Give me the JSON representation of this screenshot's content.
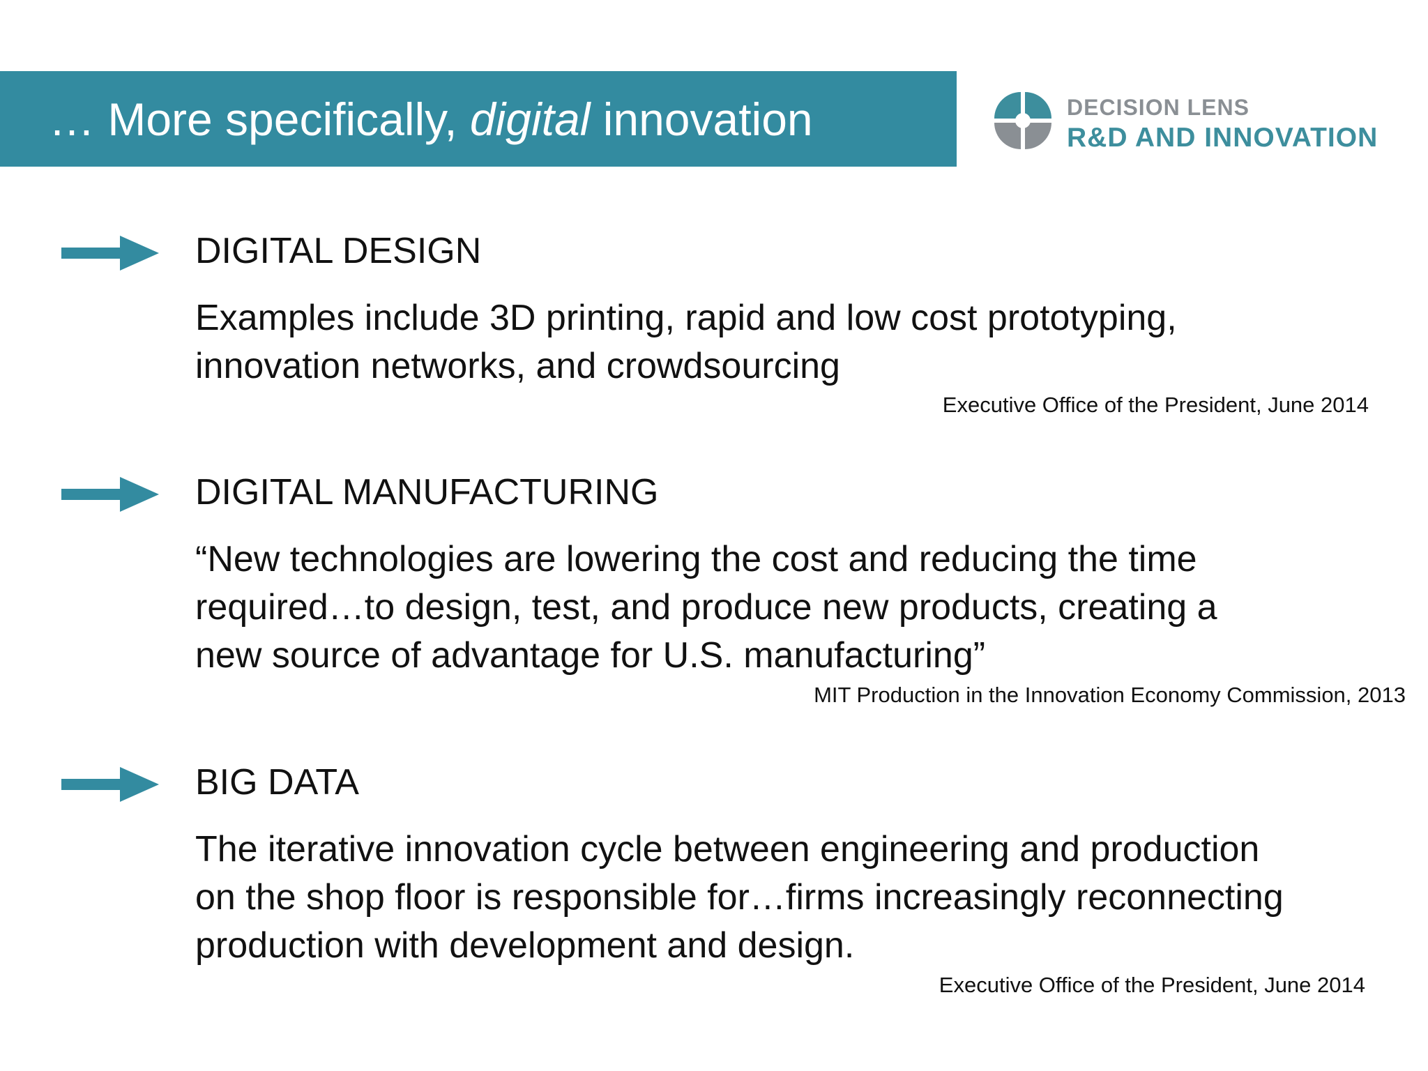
{
  "header": {
    "title_prefix": "… More specifically, ",
    "title_emphasis": "digital",
    "title_suffix": " innovation"
  },
  "logo": {
    "line1": "DECISION LENS",
    "line2": "R&D AND INNOVATION",
    "colors": {
      "teal": "#3d8e9d",
      "gray": "#8a8f94"
    }
  },
  "sections": [
    {
      "heading": "DIGITAL DESIGN",
      "body": "Examples include 3D printing, rapid and low cost prototyping,\ninnovation networks, and crowdsourcing",
      "source": "Executive Office of the President, June 2014"
    },
    {
      "heading": "DIGITAL MANUFACTURING",
      "body": "“New technologies are lowering the cost and reducing the time\nrequired…to design, test, and produce new products, creating a\nnew source of advantage for U.S. manufacturing”",
      "source": "MIT Production in the Innovation Economy Commission, 2013"
    },
    {
      "heading": "BIG DATA",
      "body": "The iterative innovation cycle between engineering and production\non the shop floor is responsible for…firms increasingly reconnecting\nproduction with development and design.",
      "source": "Executive Office of the President, June 2014"
    }
  ],
  "accent_color": "#338ba0"
}
